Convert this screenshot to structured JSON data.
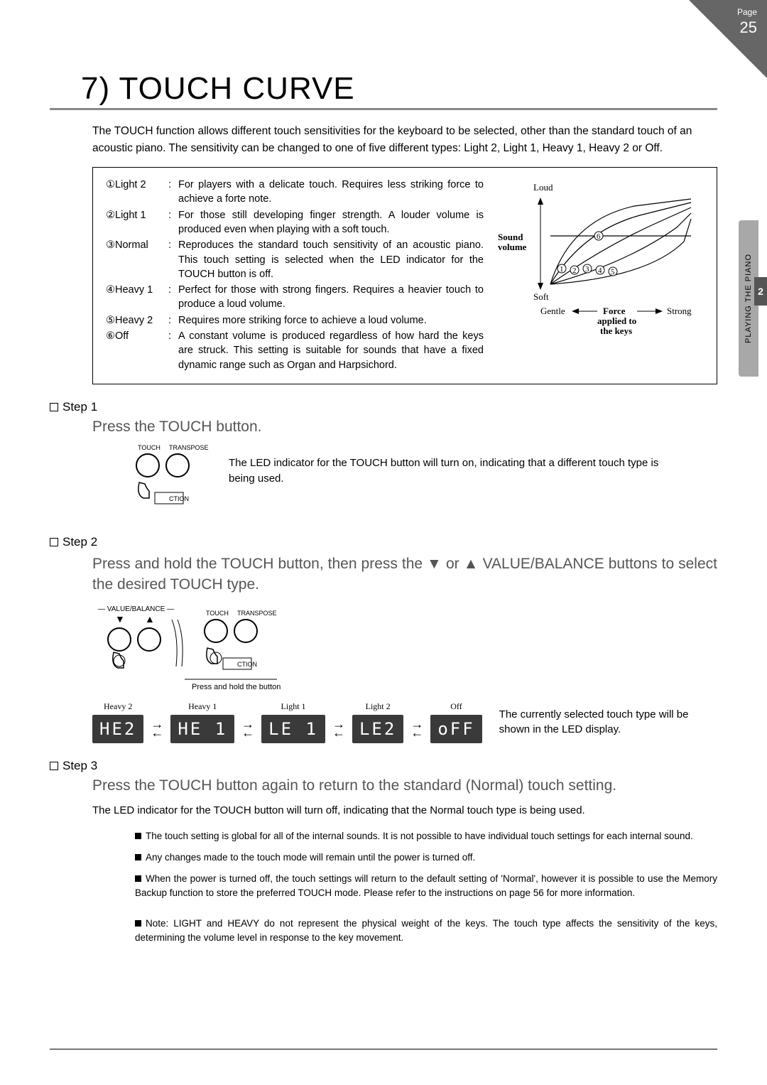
{
  "page_tab": {
    "label": "Page",
    "number": "25"
  },
  "side_tab": {
    "text": "PLAYING THE PIANO",
    "num": "2"
  },
  "title": "7) TOUCH CURVE",
  "intro": "The TOUCH function allows different touch sensitivities for the keyboard to be selected, other than the standard touch of an acoustic piano. The sensitivity can be changed to one of five different types: Light 2, Light 1, Heavy 1, Heavy 2 or Off.",
  "defs": [
    {
      "n": "①Light 2",
      "d": "For players with a delicate touch. Requires less striking force to achieve a forte note."
    },
    {
      "n": "②Light 1",
      "d": "For those still developing finger strength. A louder volume is produced even when playing with a soft touch."
    },
    {
      "n": "③Normal",
      "d": "Reproduces the standard touch sensitivity of an acoustic piano. This touch setting is selected when the LED indicator for the TOUCH button is off."
    },
    {
      "n": "④Heavy 1",
      "d": "Perfect for those with strong fingers. Requires a heavier touch to produce a loud volume."
    },
    {
      "n": "⑤Heavy 2",
      "d": "Requires more striking force to achieve a loud volume."
    },
    {
      "n": "⑥Off",
      "d": "A constant volume is produced regardless of how hard the keys are struck. This setting is suitable for sounds that have a fixed dynamic range such as Organ and Harpsichord."
    }
  ],
  "chart": {
    "y_top": "Loud",
    "y_bottom": "Soft",
    "y_label": "Sound\nvolume",
    "x_left": "Gentle",
    "x_right": "Strong",
    "x_label": "Force\napplied to\nthe keys",
    "curve_labels": [
      "①",
      "②",
      "③",
      "④",
      "⑤",
      "⑥"
    ]
  },
  "step1": {
    "head": "Step 1",
    "body": "Press the TOUCH button.",
    "btn_labels": {
      "l": "TOUCH",
      "r": "TRANSPOSE",
      "bottom": "CTION"
    },
    "text": "The LED indicator for the TOUCH button will turn on, indicating that a different touch type is being used."
  },
  "step2": {
    "head": "Step 2",
    "body": "Press and hold the TOUCH button, then press the ▼ or ▲ VALUE/BALANCE buttons to select the desired TOUCH type.",
    "vb_label": "— VALUE/BALANCE —",
    "hold_text": "Press and hold the button",
    "lcds": [
      {
        "label": "Heavy 2",
        "text": "HE2"
      },
      {
        "label": "Heavy 1",
        "text": "HE 1"
      },
      {
        "label": "Light 1",
        "text": "LE 1"
      },
      {
        "label": "Light 2",
        "text": "LE2"
      },
      {
        "label": "Off",
        "text": "oFF"
      }
    ],
    "desc": "The currently selected touch type will be shown in the LED display."
  },
  "step3": {
    "head": "Step 3",
    "body": "Press the TOUCH button again to return to the standard (Normal) touch setting.",
    "text": "The LED indicator for the TOUCH button will turn off, indicating that the Normal touch type is being used."
  },
  "notes": [
    "The touch setting is global for all of the internal sounds. It is not possible to have individual touch settings for each internal sound.",
    "Any changes made to the touch mode will remain until the power is turned off.",
    "When the power is turned off, the touch settings will return to the default setting of 'Normal', however it is possible to use the Memory Backup function to store the preferred TOUCH mode.  Please refer to the instructions on page 56 for more information.",
    "Note: LIGHT and HEAVY do not represent the physical weight of the keys. The touch type affects the sensitivity of the keys, determining the volume level in response to the key movement."
  ]
}
